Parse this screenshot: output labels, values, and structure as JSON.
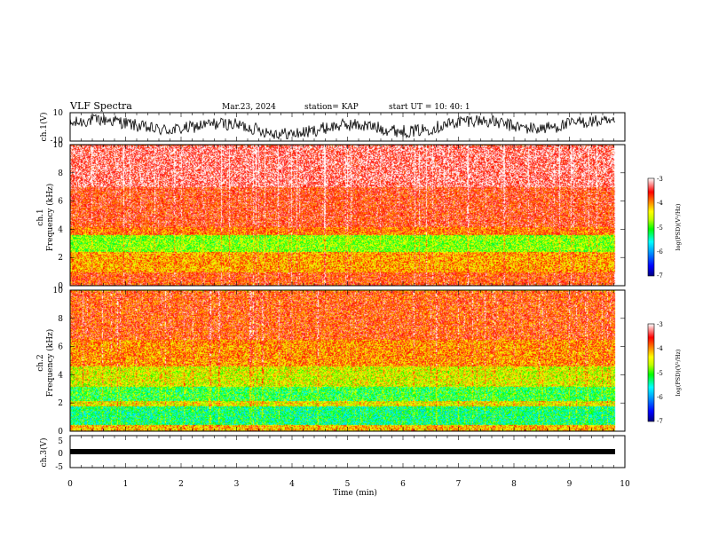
{
  "header": {
    "title": "VLF Spectra",
    "date": "Mar.23, 2024",
    "station": "station= KAP",
    "start": "start  UT =    10: 40: 1"
  },
  "chart_data": [
    {
      "type": "line",
      "panel": "ch1-waveform",
      "ylabel": "ch.1(V)",
      "ylim": [
        -10,
        10
      ],
      "yticks": [
        10,
        -10
      ],
      "xlim": [
        0,
        10
      ]
    },
    {
      "type": "heatmap",
      "panel": "ch1-spectrogram",
      "ylabel": "ch.1 Frequency (kHz)",
      "ylabel_line1": "ch.1",
      "ylabel_line2": "Frequency  (kHz)",
      "ylim": [
        0,
        10
      ],
      "yticks": [
        0,
        2,
        4,
        6,
        8,
        10
      ],
      "xlim": [
        0,
        10
      ],
      "colorbar": {
        "label": "log(PSD)(V²/Hz)",
        "range": [
          -7,
          -3
        ],
        "ticks": [
          -3,
          -4,
          -5,
          -6,
          -7
        ]
      },
      "bands": [
        {
          "from_khz": 0.0,
          "to_khz": 1.0,
          "level": -3.7
        },
        {
          "from_khz": 1.0,
          "to_khz": 2.4,
          "level": -4.1
        },
        {
          "from_khz": 2.4,
          "to_khz": 3.6,
          "level": -4.8
        },
        {
          "from_khz": 3.6,
          "to_khz": 4.2,
          "level": -3.9
        },
        {
          "from_khz": 4.2,
          "to_khz": 7.0,
          "level": -3.6
        },
        {
          "from_khz": 7.0,
          "to_khz": 10.0,
          "level": -3.3
        }
      ]
    },
    {
      "type": "heatmap",
      "panel": "ch2-spectrogram",
      "ylabel": "ch.2 Frequency (kHz)",
      "ylabel_line1": "ch.2",
      "ylabel_line2": "Frequency  (kHz)",
      "ylim": [
        0,
        10
      ],
      "yticks": [
        0,
        2,
        4,
        6,
        8,
        10
      ],
      "xlim": [
        0,
        10
      ],
      "colorbar": {
        "label": "log(PSD)(V²/Hz)",
        "range": [
          -7,
          -3
        ],
        "ticks": [
          -3,
          -4,
          -5,
          -6,
          -7
        ]
      },
      "bands": [
        {
          "from_khz": 0.0,
          "to_khz": 0.5,
          "level": -4.2
        },
        {
          "from_khz": 0.5,
          "to_khz": 1.8,
          "level": -5.3
        },
        {
          "from_khz": 1.8,
          "to_khz": 2.2,
          "level": -4.4
        },
        {
          "from_khz": 2.2,
          "to_khz": 3.2,
          "level": -5.1
        },
        {
          "from_khz": 3.2,
          "to_khz": 4.6,
          "level": -4.5
        },
        {
          "from_khz": 4.6,
          "to_khz": 6.5,
          "level": -4.0
        },
        {
          "from_khz": 6.5,
          "to_khz": 10.0,
          "level": -3.7
        }
      ]
    },
    {
      "type": "line",
      "panel": "ch3-waveform",
      "ylabel": "ch.3(V)",
      "ylim": [
        -5,
        5
      ],
      "yticks": [
        5,
        0,
        -5
      ],
      "xlim": [
        0,
        10
      ],
      "level_v": 0
    }
  ],
  "x_axis": {
    "label": "Time  (min)",
    "ticks": [
      "0",
      "1",
      "2",
      "3",
      "4",
      "5",
      "6",
      "7",
      "8",
      "9",
      "10"
    ],
    "range": [
      0,
      10
    ]
  },
  "colors": {
    "colormap": [
      "#000080",
      "#0000ff",
      "#00a0ff",
      "#00ffff",
      "#00ff00",
      "#c0ff00",
      "#ffff00",
      "#ff8000",
      "#ff0000",
      "#ffffff"
    ],
    "line": "#000000"
  }
}
